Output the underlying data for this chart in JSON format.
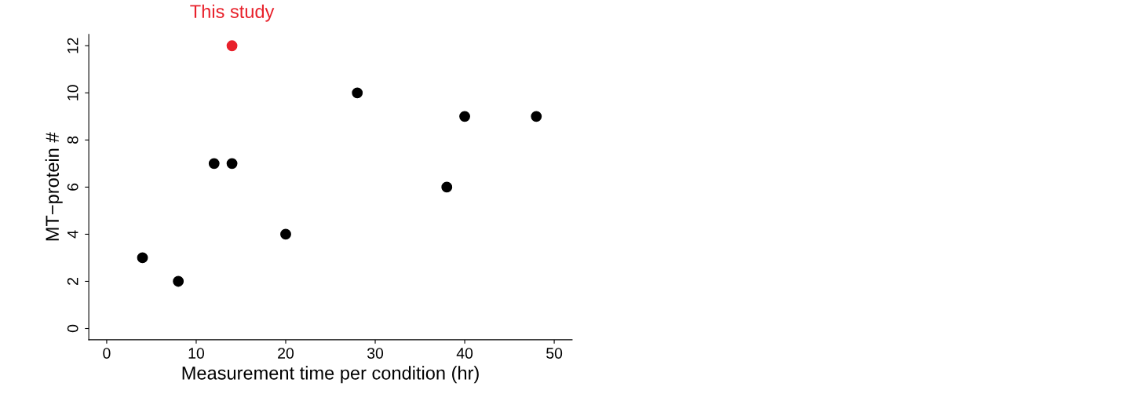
{
  "chart_data": {
    "type": "scatter",
    "xlabel": "Measurement time per condition (hr)",
    "ylabel": "MT−protein #",
    "series": [
      {
        "color": "#000000",
        "x": [
          4,
          8,
          12,
          14,
          20,
          28,
          38,
          40,
          48
        ],
        "values": [
          3,
          2,
          7,
          7,
          4,
          10,
          6,
          9,
          9
        ]
      },
      {
        "color": "#e8212b",
        "x": [
          14
        ],
        "values": [
          12
        ]
      }
    ],
    "annotations": [
      {
        "text": "This study",
        "x": 14,
        "y": 12
      }
    ],
    "xlim": [
      -2,
      52
    ],
    "ylim": [
      -0.48,
      12.48
    ],
    "xticks": [
      0,
      10,
      20,
      30,
      40,
      50
    ],
    "yticks": [
      0,
      2,
      4,
      6,
      8,
      10,
      12
    ],
    "marker": "circle",
    "grid": false,
    "legend": false
  }
}
